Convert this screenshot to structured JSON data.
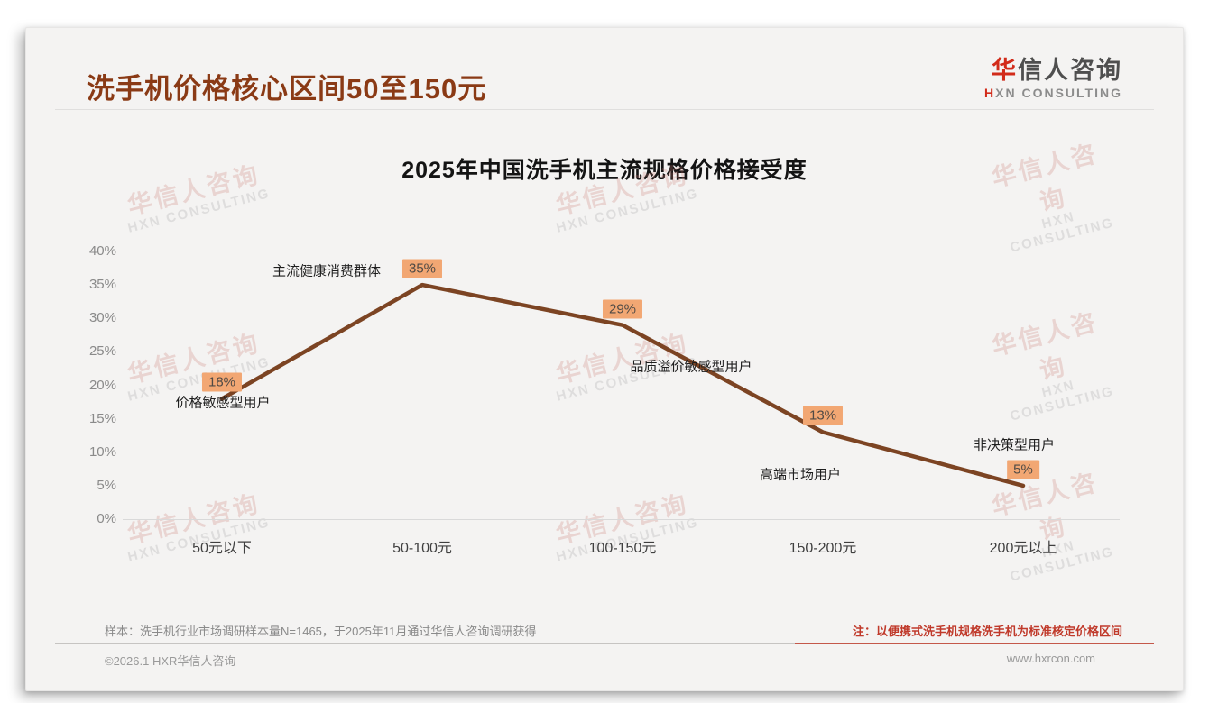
{
  "page": {
    "header": {
      "title": "洗手机价格核心区间50至150元",
      "logo": {
        "zh_red": "华",
        "zh_rest": "信人咨询",
        "en_red": "H",
        "en_rest": "XN CONSULTING"
      }
    },
    "watermark": {
      "zh": "华信人咨询",
      "en": "HXN CONSULTING"
    },
    "footer": {
      "sample_note": "样本：洗手机行业市场调研样本量N=1465，于2025年11月通过华信人咨询调研获得",
      "price_note": "注：以便携式洗手机规格洗手机为标准核定价格区间",
      "copyright": "©2026.1 HXR华信人咨询",
      "website": "www.hxrcon.com"
    },
    "colors": {
      "title_brown_red": "#8a3a15",
      "line_brown": "#7c4423",
      "badge_orange": "#f2a773",
      "note_red": "#c03a2b",
      "logo_red": "#d22b1a",
      "card_bg": "#f4f3f2"
    }
  },
  "chart_data": {
    "type": "line",
    "title": "2025年中国洗手机主流规格价格接受度",
    "categories": [
      "50元以下",
      "50-100元",
      "100-150元",
      "150-200元",
      "200元以上"
    ],
    "values": [
      18,
      35,
      29,
      13,
      5
    ],
    "value_labels": [
      "18%",
      "35%",
      "29%",
      "13%",
      "5%"
    ],
    "point_annotations": [
      "价格敏感型用户",
      "主流健康消费群体",
      "品质溢价敏感型用户",
      "高端市场用户",
      "非决策型用户"
    ],
    "y_ticks": [
      "0%",
      "5%",
      "10%",
      "15%",
      "20%",
      "25%",
      "30%",
      "35%",
      "40%"
    ],
    "xlabel": "",
    "ylabel": "",
    "ylim": [
      0,
      40
    ],
    "grid": false,
    "legend": false,
    "line_color": "#7c4423",
    "label_bg": "#f2a773"
  }
}
